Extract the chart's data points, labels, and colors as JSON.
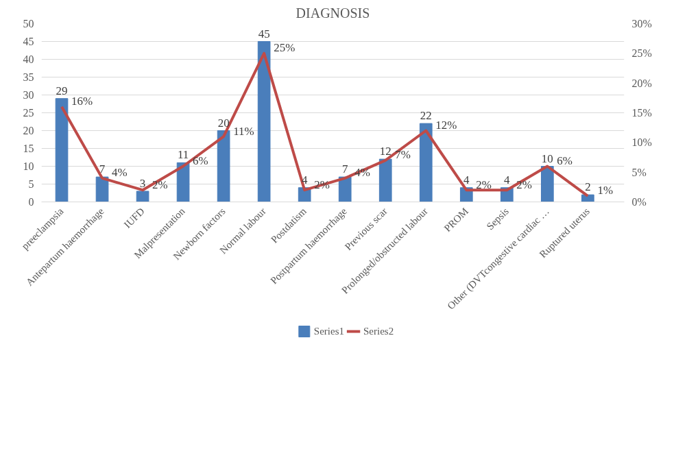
{
  "chart_data": {
    "type": "bar",
    "title": "DIAGNOSIS",
    "categories": [
      "preeclampsia",
      "Antepartum haemorrhage",
      "IUFD",
      "Malpresentation",
      "Newborn factors",
      "Normal labour",
      "Postdatism",
      "Postpartum haemorrhage",
      "Previous scar",
      "Prolonged/obstructed labour",
      "PROM",
      "Sepsis",
      "Other (DVTcongestive cardiac …",
      "Ruptured uterus"
    ],
    "series": [
      {
        "name": "Series1",
        "color": "#4a7ebb",
        "values": [
          29,
          7,
          3,
          11,
          20,
          45,
          4,
          7,
          12,
          22,
          4,
          4,
          10,
          2
        ],
        "value_labels": [
          "29",
          "7",
          "3",
          "11",
          "20",
          "45",
          "4",
          "7",
          "12",
          "22",
          "4",
          "4",
          "10",
          "2"
        ]
      },
      {
        "name": "Series2",
        "type": "line",
        "axis": "y2",
        "color": "#be4b48",
        "values": [
          16,
          4,
          2,
          6,
          11,
          25,
          2,
          4,
          7,
          12,
          2,
          2,
          6,
          1
        ],
        "value_labels": [
          "16%",
          "4%",
          "2%",
          "6%",
          "11%",
          "25%",
          "2%",
          "4%",
          "7%",
          "12%",
          "2%",
          "2%",
          "6%",
          "1%"
        ]
      }
    ],
    "ylim": [
      0,
      50
    ],
    "yticks": [
      0,
      5,
      10,
      15,
      20,
      25,
      30,
      35,
      40,
      45,
      50
    ],
    "y2lim": [
      0,
      30
    ],
    "y2ticks": [
      {
        "value": 0,
        "label": "0%"
      },
      {
        "value": 5,
        "label": "5%"
      },
      {
        "value": 10,
        "label": "10%"
      },
      {
        "value": 15,
        "label": "15%"
      },
      {
        "value": 20,
        "label": "20%"
      },
      {
        "value": 25,
        "label": "25%"
      },
      {
        "value": 30,
        "label": "30%"
      }
    ],
    "grid": "y",
    "legend": "bottom"
  }
}
